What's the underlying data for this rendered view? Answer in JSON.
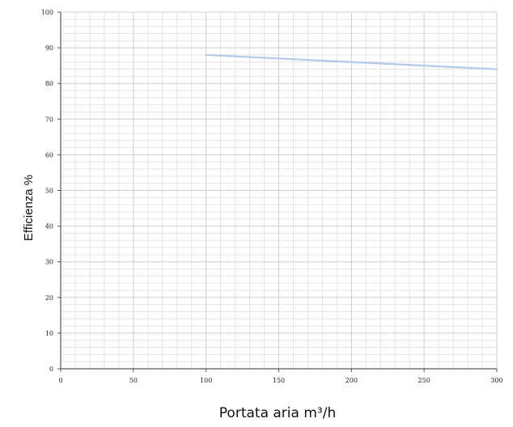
{
  "chart_data": {
    "type": "line",
    "title": "",
    "xlabel": "Portata aria m³/h",
    "ylabel": "Efficienza %",
    "xlim": [
      0,
      300
    ],
    "ylim": [
      0,
      100
    ],
    "xticks": [
      0,
      50,
      100,
      150,
      200,
      250,
      300
    ],
    "yticks": [
      0,
      10,
      20,
      30,
      40,
      50,
      60,
      70,
      80,
      90,
      100
    ],
    "x_tick_labels": [
      "0",
      "50",
      "100",
      "150",
      "200",
      "250",
      "300"
    ],
    "y_tick_labels": [
      "0",
      "10",
      "20",
      "30",
      "40",
      "50",
      "60",
      "70",
      "80",
      "90",
      "100"
    ],
    "grid": true,
    "series": [
      {
        "x": [
          100,
          300
        ],
        "y": [
          88,
          84
        ],
        "color": "#b4c8ea"
      }
    ]
  }
}
